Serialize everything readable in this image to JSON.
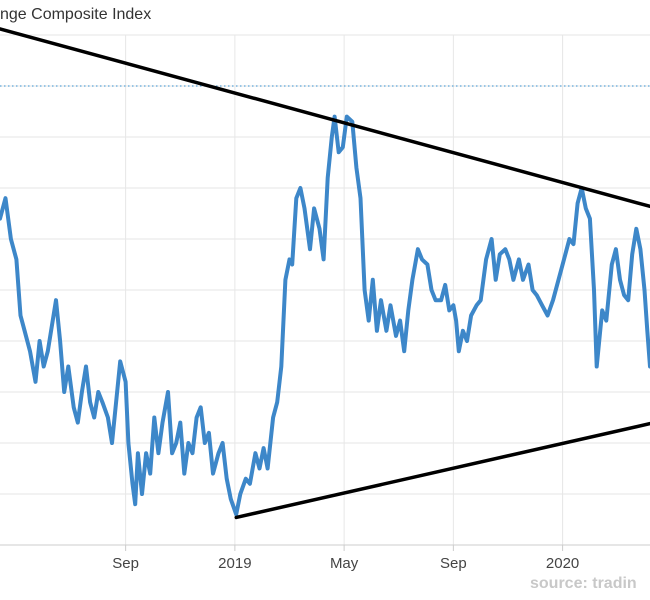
{
  "chart_data": {
    "type": "line",
    "title": "nge Composite Index",
    "source": "source: tradin",
    "x_tick_labels": [
      "Sep",
      "2019",
      "May",
      "Sep",
      "2020"
    ],
    "x_tick_months": [
      0,
      4,
      8,
      12,
      16
    ],
    "xlim_months": [
      -4.6,
      19.2
    ],
    "ylim": [
      0,
      100
    ],
    "grid": true,
    "reference_line": {
      "y": 90,
      "style": "dotted",
      "color": "#5aa5d6"
    },
    "trendlines": [
      {
        "name": "upper",
        "points": [
          [
            -4.6,
            101.2
          ],
          [
            19.2,
            66.4
          ]
        ]
      },
      {
        "name": "lower",
        "points": [
          [
            4.05,
            5.4
          ],
          [
            19.2,
            23.8
          ]
        ]
      }
    ],
    "series": [
      {
        "color": "#3d87c9",
        "points": [
          [
            -4.6,
            64
          ],
          [
            -4.4,
            68
          ],
          [
            -4.2,
            60
          ],
          [
            -4.0,
            56
          ],
          [
            -3.85,
            45
          ],
          [
            -3.7,
            42
          ],
          [
            -3.5,
            38
          ],
          [
            -3.3,
            32
          ],
          [
            -3.15,
            40
          ],
          [
            -3.0,
            35
          ],
          [
            -2.85,
            38
          ],
          [
            -2.7,
            43
          ],
          [
            -2.55,
            48
          ],
          [
            -2.4,
            40
          ],
          [
            -2.25,
            30
          ],
          [
            -2.1,
            35
          ],
          [
            -1.9,
            27
          ],
          [
            -1.75,
            24
          ],
          [
            -1.6,
            30
          ],
          [
            -1.45,
            35
          ],
          [
            -1.3,
            28
          ],
          [
            -1.15,
            25
          ],
          [
            -1.0,
            30
          ],
          [
            -0.85,
            28
          ],
          [
            -0.65,
            25
          ],
          [
            -0.5,
            20
          ],
          [
            -0.35,
            28
          ],
          [
            -0.2,
            36
          ],
          [
            0.0,
            32
          ],
          [
            0.1,
            20
          ],
          [
            0.25,
            12
          ],
          [
            0.35,
            8
          ],
          [
            0.45,
            18
          ],
          [
            0.6,
            10
          ],
          [
            0.75,
            18
          ],
          [
            0.9,
            14
          ],
          [
            1.05,
            25
          ],
          [
            1.2,
            18
          ],
          [
            1.35,
            24
          ],
          [
            1.55,
            30
          ],
          [
            1.7,
            18
          ],
          [
            1.85,
            20
          ],
          [
            2.0,
            24
          ],
          [
            2.15,
            14
          ],
          [
            2.3,
            20
          ],
          [
            2.45,
            18
          ],
          [
            2.6,
            25
          ],
          [
            2.75,
            27
          ],
          [
            2.9,
            20
          ],
          [
            3.05,
            22
          ],
          [
            3.2,
            14
          ],
          [
            3.4,
            18
          ],
          [
            3.55,
            20
          ],
          [
            3.7,
            13
          ],
          [
            3.85,
            9
          ],
          [
            4.05,
            6
          ],
          [
            4.2,
            10
          ],
          [
            4.4,
            13
          ],
          [
            4.55,
            12
          ],
          [
            4.75,
            18
          ],
          [
            4.9,
            15
          ],
          [
            5.05,
            19
          ],
          [
            5.2,
            15
          ],
          [
            5.4,
            25
          ],
          [
            5.55,
            28
          ],
          [
            5.7,
            35
          ],
          [
            5.85,
            52
          ],
          [
            6.0,
            56
          ],
          [
            6.1,
            55
          ],
          [
            6.25,
            68
          ],
          [
            6.4,
            70
          ],
          [
            6.55,
            66
          ],
          [
            6.75,
            58
          ],
          [
            6.9,
            66
          ],
          [
            7.1,
            62
          ],
          [
            7.25,
            56
          ],
          [
            7.4,
            72
          ],
          [
            7.55,
            80
          ],
          [
            7.65,
            84
          ],
          [
            7.8,
            77
          ],
          [
            7.95,
            78
          ],
          [
            8.1,
            84
          ],
          [
            8.3,
            83
          ],
          [
            8.45,
            74
          ],
          [
            8.6,
            68
          ],
          [
            8.75,
            50
          ],
          [
            8.9,
            44
          ],
          [
            9.05,
            52
          ],
          [
            9.2,
            42
          ],
          [
            9.35,
            48
          ],
          [
            9.55,
            42
          ],
          [
            9.7,
            47
          ],
          [
            9.9,
            41
          ],
          [
            10.05,
            44
          ],
          [
            10.2,
            38
          ],
          [
            10.35,
            46
          ],
          [
            10.5,
            52
          ],
          [
            10.7,
            58
          ],
          [
            10.85,
            56
          ],
          [
            11.05,
            55
          ],
          [
            11.2,
            50
          ],
          [
            11.35,
            48
          ],
          [
            11.55,
            48
          ],
          [
            11.7,
            51
          ],
          [
            11.85,
            46
          ],
          [
            12.0,
            47
          ],
          [
            12.1,
            44
          ],
          [
            12.2,
            38
          ],
          [
            12.35,
            42
          ],
          [
            12.5,
            40
          ],
          [
            12.65,
            45
          ],
          [
            12.85,
            47
          ],
          [
            13.0,
            48
          ],
          [
            13.2,
            56
          ],
          [
            13.4,
            60
          ],
          [
            13.55,
            52
          ],
          [
            13.7,
            57
          ],
          [
            13.9,
            58
          ],
          [
            14.05,
            56
          ],
          [
            14.2,
            52
          ],
          [
            14.4,
            56
          ],
          [
            14.55,
            52
          ],
          [
            14.75,
            55
          ],
          [
            14.9,
            50
          ],
          [
            15.05,
            49
          ],
          [
            15.25,
            47
          ],
          [
            15.45,
            45
          ],
          [
            15.65,
            48
          ],
          [
            15.85,
            52
          ],
          [
            16.05,
            56
          ],
          [
            16.25,
            60
          ],
          [
            16.4,
            59
          ],
          [
            16.55,
            67
          ],
          [
            16.7,
            70
          ],
          [
            16.85,
            66
          ],
          [
            17.0,
            64
          ],
          [
            17.15,
            50
          ],
          [
            17.25,
            35
          ],
          [
            17.45,
            46
          ],
          [
            17.6,
            44
          ],
          [
            17.8,
            55
          ],
          [
            17.95,
            58
          ],
          [
            18.1,
            52
          ],
          [
            18.25,
            49
          ],
          [
            18.4,
            48
          ],
          [
            18.55,
            57
          ],
          [
            18.7,
            62
          ],
          [
            18.85,
            58
          ],
          [
            19.0,
            50
          ],
          [
            19.1,
            42
          ],
          [
            19.2,
            35
          ]
        ]
      }
    ]
  }
}
